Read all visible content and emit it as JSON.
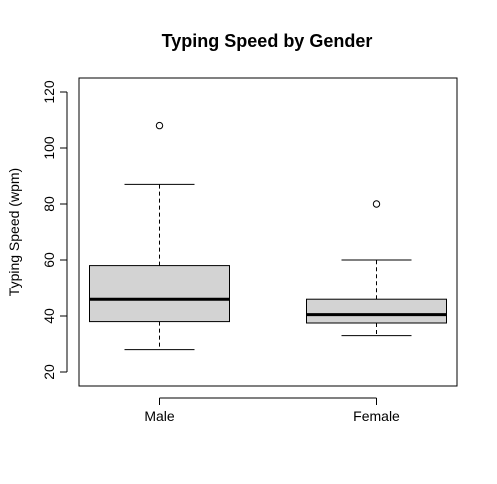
{
  "chart_data": {
    "type": "box",
    "title": "Typing Speed by Gender",
    "xlabel": "",
    "ylabel": "Typing Speed (wpm)",
    "ylim": [
      15,
      125
    ],
    "y_ticks": [
      20,
      40,
      60,
      80,
      100,
      120
    ],
    "categories": [
      "Male",
      "Female"
    ],
    "boxes": [
      {
        "category": "Male",
        "whisker_low": 28,
        "q1": 38,
        "median": 46,
        "q3": 58,
        "whisker_high": 87,
        "outliers": [
          108
        ]
      },
      {
        "category": "Female",
        "whisker_low": 33,
        "q1": 37.5,
        "median": 40.5,
        "q3": 46,
        "whisker_high": 60,
        "outliers": [
          80
        ]
      }
    ],
    "box_fill": "#d3d3d3",
    "grid": false,
    "legend": "none"
  }
}
